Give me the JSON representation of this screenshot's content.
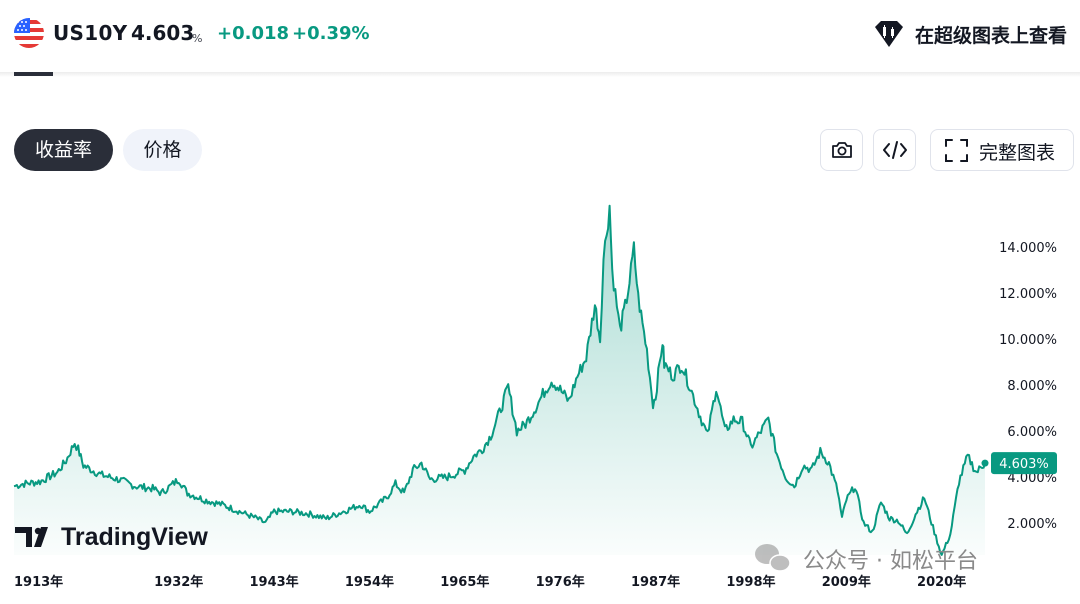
{
  "header": {
    "symbol": "US10Y",
    "price": "4.603",
    "price_unit": "%",
    "change": "+0.018",
    "change_pct": "+0.39%",
    "supercharts_link": "在超级图表上查看",
    "flag_icon": "us-flag-icon",
    "up_color": "#089981"
  },
  "tabs": {
    "yield": "收益率",
    "price": "价格"
  },
  "toolbar": {
    "camera_icon": "camera-icon",
    "embed_icon": "code-embed-icon",
    "fullscreen_label": "完整图表"
  },
  "watermarks": {
    "tradingview": "TradingView",
    "wechat": "公众号 · 如松平台"
  },
  "chart_data": {
    "type": "area",
    "series": [
      {
        "values_pct": [],
        "points": [
          [
            1913,
            3.6
          ],
          [
            1914,
            3.7
          ],
          [
            1916,
            3.8
          ],
          [
            1918,
            4.2
          ],
          [
            1919,
            4.7
          ],
          [
            1920,
            5.5
          ],
          [
            1920.4,
            5.2
          ],
          [
            1921,
            4.5
          ],
          [
            1922,
            4.3
          ],
          [
            1923,
            4.1
          ],
          [
            1925,
            3.9
          ],
          [
            1927,
            3.6
          ],
          [
            1929,
            3.5
          ],
          [
            1930,
            3.3
          ],
          [
            1931,
            3.6
          ],
          [
            1932,
            3.9
          ],
          [
            1933,
            3.3
          ],
          [
            1935,
            3.0
          ],
          [
            1937,
            2.8
          ],
          [
            1939,
            2.5
          ],
          [
            1941,
            2.2
          ],
          [
            1942,
            2.0
          ],
          [
            1943,
            2.5
          ],
          [
            1945,
            2.5
          ],
          [
            1947,
            2.4
          ],
          [
            1949,
            2.2
          ],
          [
            1951,
            2.5
          ],
          [
            1953,
            2.8
          ],
          [
            1954,
            2.5
          ],
          [
            1956,
            3.1
          ],
          [
            1957,
            3.7
          ],
          [
            1958,
            3.3
          ],
          [
            1959,
            4.3
          ],
          [
            1960,
            4.6
          ],
          [
            1961,
            3.9
          ],
          [
            1963,
            4.0
          ],
          [
            1965,
            4.3
          ],
          [
            1966,
            4.9
          ],
          [
            1967,
            5.2
          ],
          [
            1968,
            5.8
          ],
          [
            1969,
            6.8
          ],
          [
            1970,
            7.9
          ],
          [
            1971,
            6.0
          ],
          [
            1972,
            6.3
          ],
          [
            1973,
            6.9
          ],
          [
            1974,
            7.6
          ],
          [
            1975,
            8.2
          ],
          [
            1976,
            7.8
          ],
          [
            1977,
            7.3
          ],
          [
            1978,
            8.4
          ],
          [
            1979,
            9.2
          ],
          [
            1980,
            11.5
          ],
          [
            1980.6,
            10.0
          ],
          [
            1981,
            13.5
          ],
          [
            1981.7,
            15.8
          ],
          [
            1982,
            13.0
          ],
          [
            1982.9,
            10.4
          ],
          [
            1983.5,
            11.4
          ],
          [
            1984,
            12.5
          ],
          [
            1984.5,
            13.9
          ],
          [
            1985,
            11.8
          ],
          [
            1986,
            9.5
          ],
          [
            1986.7,
            7.2
          ],
          [
            1987,
            7.5
          ],
          [
            1987.8,
            9.9
          ],
          [
            1988,
            8.9
          ],
          [
            1989,
            8.4
          ],
          [
            1990,
            8.9
          ],
          [
            1991,
            7.9
          ],
          [
            1992,
            6.8
          ],
          [
            1993,
            5.8
          ],
          [
            1994,
            7.9
          ],
          [
            1995,
            6.0
          ],
          [
            1996,
            6.5
          ],
          [
            1997,
            6.4
          ],
          [
            1998,
            5.3
          ],
          [
            1999,
            5.9
          ],
          [
            2000,
            6.5
          ],
          [
            2001,
            5.0
          ],
          [
            2002,
            4.0
          ],
          [
            2003,
            3.6
          ],
          [
            2004,
            4.5
          ],
          [
            2005,
            4.3
          ],
          [
            2006,
            5.1
          ],
          [
            2007,
            4.6
          ],
          [
            2008,
            3.4
          ],
          [
            2008.5,
            2.2
          ],
          [
            2009,
            3.0
          ],
          [
            2010,
            3.6
          ],
          [
            2011,
            2.0
          ],
          [
            2012,
            1.6
          ],
          [
            2013,
            2.9
          ],
          [
            2014,
            2.2
          ],
          [
            2015,
            2.1
          ],
          [
            2016,
            1.5
          ],
          [
            2017,
            2.4
          ],
          [
            2018,
            3.1
          ],
          [
            2019,
            1.8
          ],
          [
            2020,
            0.6
          ],
          [
            2021,
            1.5
          ],
          [
            2022,
            3.8
          ],
          [
            2023,
            4.9
          ],
          [
            2024,
            4.2
          ],
          [
            2025,
            4.603
          ]
        ]
      }
    ],
    "last_value_label": "4.603%",
    "y_ticks": [
      "2.000%",
      "4.000%",
      "6.000%",
      "8.000%",
      "10.000%",
      "12.000%",
      "14.000%"
    ],
    "x_ticks": [
      "1913年",
      "1932年",
      "1943年",
      "1954年",
      "1965年",
      "1976年",
      "1987年",
      "1998年",
      "2009年",
      "2020年"
    ],
    "line_color": "#089981",
    "fill_color": "#089981"
  }
}
